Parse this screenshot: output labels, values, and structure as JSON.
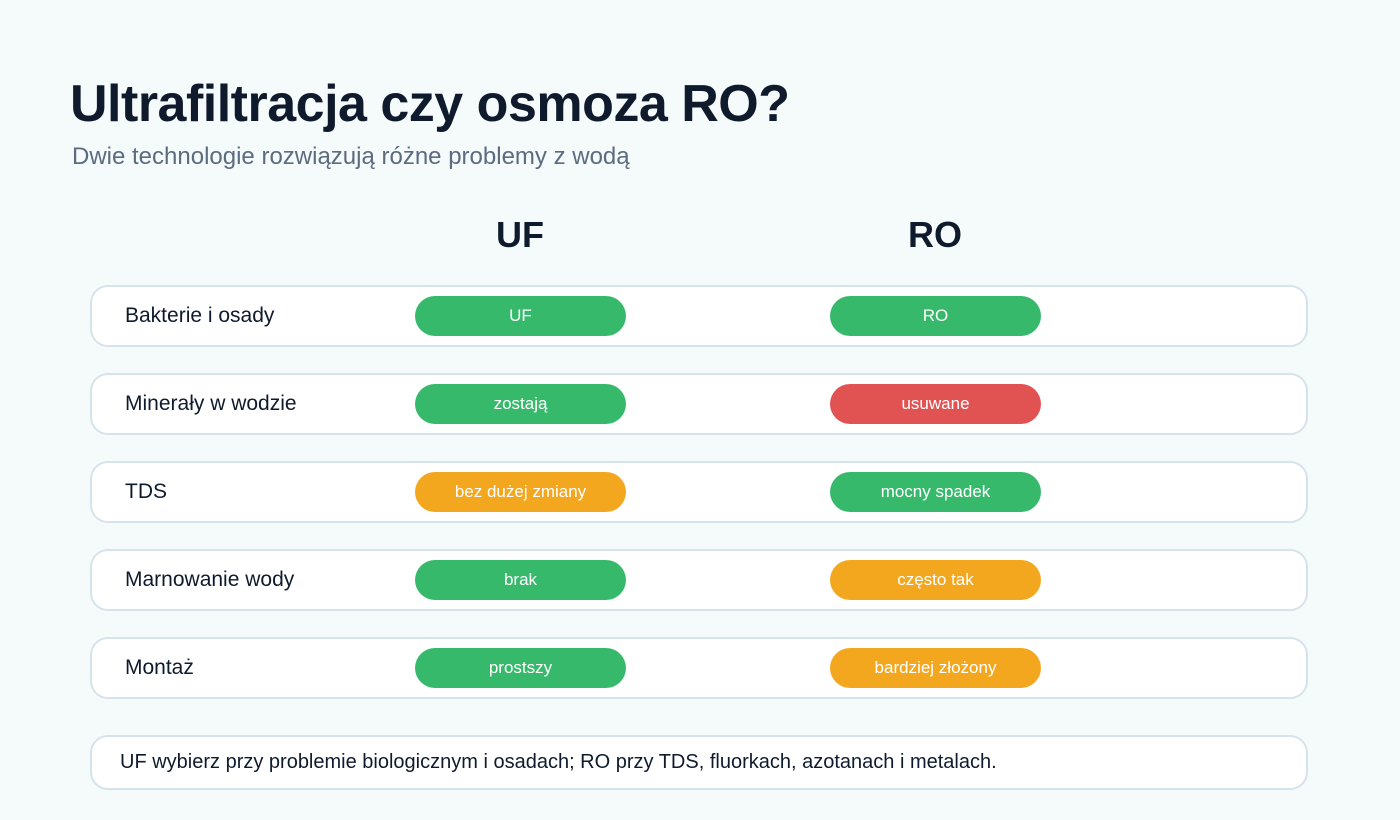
{
  "title": "Ultrafiltracja czy osmoza RO?",
  "subtitle": "Dwie technologie rozwiązują różne problemy z wodą",
  "columns": {
    "uf": "UF",
    "ro": "RO"
  },
  "colors": {
    "good": "#37b96c",
    "bad": "#e15353",
    "mid": "#f2a71f"
  },
  "rows": [
    {
      "label": "Bakterie i osady",
      "uf": {
        "text": "UF",
        "status": "good"
      },
      "ro": {
        "text": "RO",
        "status": "good"
      }
    },
    {
      "label": "Minerały w wodzie",
      "uf": {
        "text": "zostają",
        "status": "good"
      },
      "ro": {
        "text": "usuwane",
        "status": "bad"
      }
    },
    {
      "label": "TDS",
      "uf": {
        "text": "bez dużej zmiany",
        "status": "mid"
      },
      "ro": {
        "text": "mocny spadek",
        "status": "good"
      }
    },
    {
      "label": "Marnowanie wody",
      "uf": {
        "text": "brak",
        "status": "good"
      },
      "ro": {
        "text": "często tak",
        "status": "mid"
      }
    },
    {
      "label": "Montaż",
      "uf": {
        "text": "prostszy",
        "status": "good"
      },
      "ro": {
        "text": "bardziej złożony",
        "status": "mid"
      }
    }
  ],
  "note": "UF wybierz przy problemie biologicznym i osadach; RO przy TDS, fluorkach, azotanach i metalach."
}
